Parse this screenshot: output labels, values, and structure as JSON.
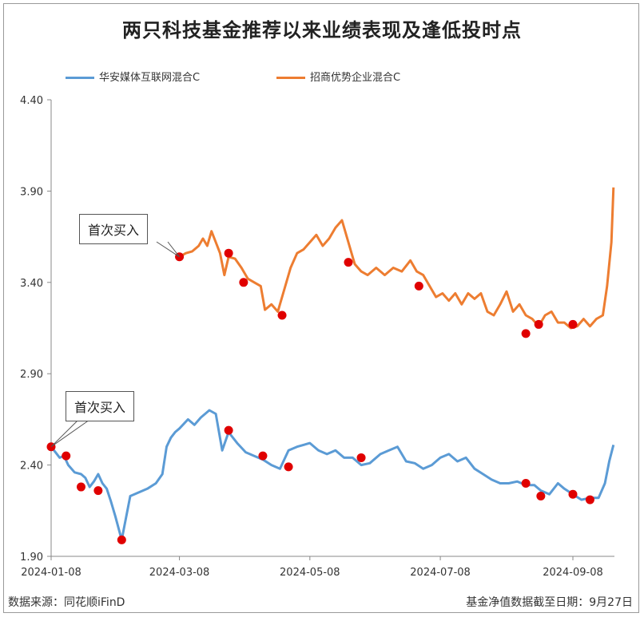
{
  "title": "两只科技基金推荐以来业绩表现及逢低投时点",
  "colors": {
    "series_a": "#5b9bd5",
    "series_b": "#ed7d31",
    "marker": "#e00000"
  },
  "callouts": {
    "top": "首次买入",
    "bottom": "首次买入"
  },
  "footer": {
    "source": "数据来源：同花顺iFinD",
    "date": "基金净值数据截至日期：9月27日"
  },
  "chart_data": {
    "type": "line",
    "title": "两只科技基金推荐以来业绩表现及逢低投时点",
    "xlabel": "",
    "ylabel": "",
    "ylim": [
      1.9,
      4.4
    ],
    "yticks": [
      "1.90",
      "2.40",
      "2.90",
      "3.40",
      "3.90",
      "4.40"
    ],
    "xlim": [
      "2024-01-08",
      "2024-09-27"
    ],
    "xticks": [
      "2024-01-08",
      "2024-03-08",
      "2024-05-08",
      "2024-07-08",
      "2024-09-08"
    ],
    "legend_position": "top",
    "grid": false,
    "series": [
      {
        "name": "华安媒体互联网混合C",
        "points": [
          [
            "2024-01-08",
            2.5
          ],
          [
            "2024-01-10",
            2.47
          ],
          [
            "2024-01-12",
            2.44
          ],
          [
            "2024-01-14",
            2.45
          ],
          [
            "2024-01-16",
            2.4
          ],
          [
            "2024-01-19",
            2.36
          ],
          [
            "2024-01-22",
            2.35
          ],
          [
            "2024-01-24",
            2.33
          ],
          [
            "2024-01-26",
            2.28
          ],
          [
            "2024-01-28",
            2.31
          ],
          [
            "2024-01-30",
            2.35
          ],
          [
            "2024-02-01",
            2.3
          ],
          [
            "2024-02-03",
            2.27
          ],
          [
            "2024-02-05",
            2.2
          ],
          [
            "2024-02-07",
            2.12
          ],
          [
            "2024-02-10",
            1.99
          ],
          [
            "2024-02-14",
            2.23
          ],
          [
            "2024-02-18",
            2.25
          ],
          [
            "2024-02-22",
            2.27
          ],
          [
            "2024-02-26",
            2.3
          ],
          [
            "2024-02-29",
            2.35
          ],
          [
            "2024-03-02",
            2.5
          ],
          [
            "2024-03-04",
            2.55
          ],
          [
            "2024-03-06",
            2.58
          ],
          [
            "2024-03-08",
            2.6
          ],
          [
            "2024-03-12",
            2.65
          ],
          [
            "2024-03-15",
            2.62
          ],
          [
            "2024-03-18",
            2.66
          ],
          [
            "2024-03-22",
            2.7
          ],
          [
            "2024-03-25",
            2.68
          ],
          [
            "2024-03-28",
            2.48
          ],
          [
            "2024-03-31",
            2.58
          ],
          [
            "2024-04-04",
            2.52
          ],
          [
            "2024-04-08",
            2.47
          ],
          [
            "2024-04-12",
            2.45
          ],
          [
            "2024-04-16",
            2.43
          ],
          [
            "2024-04-20",
            2.4
          ],
          [
            "2024-04-24",
            2.38
          ],
          [
            "2024-04-28",
            2.48
          ],
          [
            "2024-05-02",
            2.5
          ],
          [
            "2024-05-08",
            2.52
          ],
          [
            "2024-05-12",
            2.48
          ],
          [
            "2024-05-16",
            2.46
          ],
          [
            "2024-05-20",
            2.48
          ],
          [
            "2024-05-24",
            2.44
          ],
          [
            "2024-05-28",
            2.44
          ],
          [
            "2024-06-01",
            2.4
          ],
          [
            "2024-06-05",
            2.41
          ],
          [
            "2024-06-10",
            2.46
          ],
          [
            "2024-06-14",
            2.48
          ],
          [
            "2024-06-18",
            2.5
          ],
          [
            "2024-06-22",
            2.42
          ],
          [
            "2024-06-26",
            2.41
          ],
          [
            "2024-06-30",
            2.38
          ],
          [
            "2024-07-04",
            2.4
          ],
          [
            "2024-07-08",
            2.44
          ],
          [
            "2024-07-12",
            2.46
          ],
          [
            "2024-07-16",
            2.42
          ],
          [
            "2024-07-20",
            2.44
          ],
          [
            "2024-07-24",
            2.38
          ],
          [
            "2024-07-28",
            2.35
          ],
          [
            "2024-08-01",
            2.32
          ],
          [
            "2024-08-05",
            2.3
          ],
          [
            "2024-08-09",
            2.3
          ],
          [
            "2024-08-13",
            2.31
          ],
          [
            "2024-08-17",
            2.29
          ],
          [
            "2024-08-21",
            2.29
          ],
          [
            "2024-08-24",
            2.26
          ],
          [
            "2024-08-28",
            2.24
          ],
          [
            "2024-09-01",
            2.3
          ],
          [
            "2024-09-04",
            2.27
          ],
          [
            "2024-09-08",
            2.24
          ],
          [
            "2024-09-12",
            2.21
          ],
          [
            "2024-09-16",
            2.22
          ],
          [
            "2024-09-20",
            2.22
          ],
          [
            "2024-09-23",
            2.3
          ],
          [
            "2024-09-25",
            2.42
          ],
          [
            "2024-09-27",
            2.51
          ]
        ],
        "markers": [
          [
            "2024-01-08",
            2.5
          ],
          [
            "2024-01-15",
            2.45
          ],
          [
            "2024-01-22",
            2.28
          ],
          [
            "2024-01-30",
            2.26
          ],
          [
            "2024-02-10",
            1.99
          ],
          [
            "2024-03-31",
            2.59
          ],
          [
            "2024-04-16",
            2.45
          ],
          [
            "2024-04-28",
            2.39
          ],
          [
            "2024-06-01",
            2.44
          ],
          [
            "2024-08-17",
            2.3
          ],
          [
            "2024-08-24",
            2.23
          ],
          [
            "2024-09-08",
            2.24
          ],
          [
            "2024-09-16",
            2.21
          ]
        ]
      },
      {
        "name": "招商优势企业混合C",
        "points": [
          [
            "2024-03-08",
            3.54
          ],
          [
            "2024-03-11",
            3.56
          ],
          [
            "2024-03-14",
            3.57
          ],
          [
            "2024-03-17",
            3.6
          ],
          [
            "2024-03-19",
            3.64
          ],
          [
            "2024-03-21",
            3.6
          ],
          [
            "2024-03-23",
            3.68
          ],
          [
            "2024-03-25",
            3.62
          ],
          [
            "2024-03-27",
            3.56
          ],
          [
            "2024-03-29",
            3.44
          ],
          [
            "2024-03-31",
            3.54
          ],
          [
            "2024-04-03",
            3.53
          ],
          [
            "2024-04-06",
            3.48
          ],
          [
            "2024-04-09",
            3.42
          ],
          [
            "2024-04-12",
            3.4
          ],
          [
            "2024-04-15",
            3.38
          ],
          [
            "2024-04-17",
            3.25
          ],
          [
            "2024-04-20",
            3.28
          ],
          [
            "2024-04-23",
            3.24
          ],
          [
            "2024-04-26",
            3.36
          ],
          [
            "2024-04-29",
            3.48
          ],
          [
            "2024-05-02",
            3.56
          ],
          [
            "2024-05-05",
            3.58
          ],
          [
            "2024-05-08",
            3.62
          ],
          [
            "2024-05-11",
            3.66
          ],
          [
            "2024-05-14",
            3.6
          ],
          [
            "2024-05-17",
            3.64
          ],
          [
            "2024-05-20",
            3.7
          ],
          [
            "2024-05-23",
            3.74
          ],
          [
            "2024-05-26",
            3.62
          ],
          [
            "2024-05-29",
            3.5
          ],
          [
            "2024-06-01",
            3.46
          ],
          [
            "2024-06-04",
            3.44
          ],
          [
            "2024-06-08",
            3.48
          ],
          [
            "2024-06-12",
            3.44
          ],
          [
            "2024-06-16",
            3.48
          ],
          [
            "2024-06-20",
            3.46
          ],
          [
            "2024-06-24",
            3.52
          ],
          [
            "2024-06-27",
            3.46
          ],
          [
            "2024-06-30",
            3.44
          ],
          [
            "2024-07-03",
            3.38
          ],
          [
            "2024-07-06",
            3.32
          ],
          [
            "2024-07-09",
            3.34
          ],
          [
            "2024-07-12",
            3.3
          ],
          [
            "2024-07-15",
            3.34
          ],
          [
            "2024-07-18",
            3.28
          ],
          [
            "2024-07-21",
            3.34
          ],
          [
            "2024-07-24",
            3.31
          ],
          [
            "2024-07-27",
            3.34
          ],
          [
            "2024-07-30",
            3.24
          ],
          [
            "2024-08-02",
            3.22
          ],
          [
            "2024-08-05",
            3.28
          ],
          [
            "2024-08-08",
            3.35
          ],
          [
            "2024-08-11",
            3.24
          ],
          [
            "2024-08-14",
            3.28
          ],
          [
            "2024-08-17",
            3.22
          ],
          [
            "2024-08-20",
            3.2
          ],
          [
            "2024-08-23",
            3.16
          ],
          [
            "2024-08-26",
            3.22
          ],
          [
            "2024-08-29",
            3.24
          ],
          [
            "2024-09-01",
            3.18
          ],
          [
            "2024-09-04",
            3.18
          ],
          [
            "2024-09-07",
            3.15
          ],
          [
            "2024-09-10",
            3.16
          ],
          [
            "2024-09-13",
            3.2
          ],
          [
            "2024-09-16",
            3.16
          ],
          [
            "2024-09-19",
            3.2
          ],
          [
            "2024-09-22",
            3.22
          ],
          [
            "2024-09-24",
            3.38
          ],
          [
            "2024-09-26",
            3.62
          ],
          [
            "2024-09-27",
            3.92
          ]
        ],
        "markers": [
          [
            "2024-03-08",
            3.54
          ],
          [
            "2024-03-31",
            3.56
          ],
          [
            "2024-04-07",
            3.4
          ],
          [
            "2024-04-25",
            3.22
          ],
          [
            "2024-05-26",
            3.51
          ],
          [
            "2024-06-28",
            3.38
          ],
          [
            "2024-08-17",
            3.12
          ],
          [
            "2024-08-23",
            3.17
          ],
          [
            "2024-09-08",
            3.17
          ]
        ]
      }
    ]
  }
}
